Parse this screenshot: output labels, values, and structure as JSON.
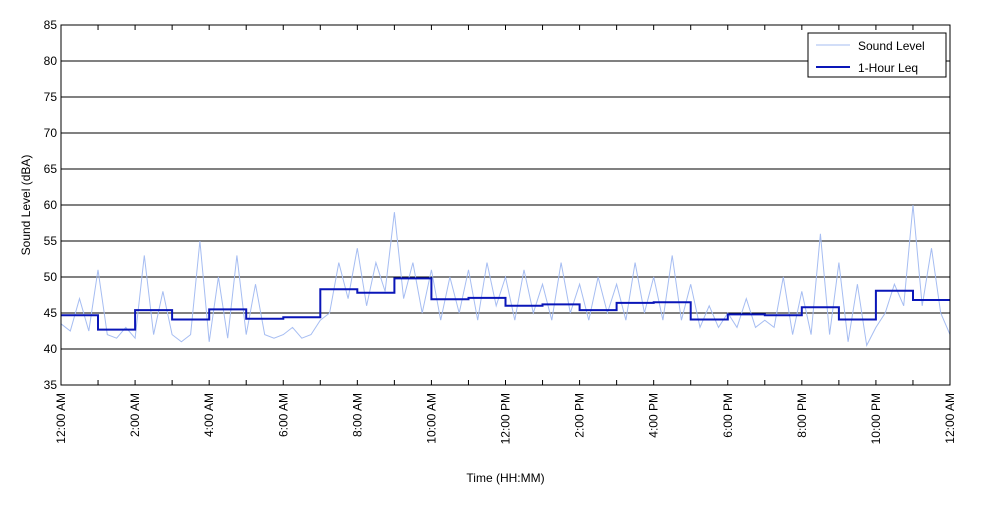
{
  "chart_data": {
    "type": "line",
    "title": "",
    "xlabel": "Time (HH:MM)",
    "ylabel": "Sound Level (dBA)",
    "xlim": [
      0,
      24
    ],
    "ylim": [
      35,
      85
    ],
    "y_ticks": [
      35,
      40,
      45,
      50,
      55,
      60,
      65,
      70,
      75,
      80,
      85
    ],
    "x_ticks": [
      0,
      2,
      4,
      6,
      8,
      10,
      12,
      14,
      16,
      18,
      20,
      22,
      24
    ],
    "x_tick_labels": [
      "12:00 AM",
      "2:00 AM",
      "4:00 AM",
      "6:00 AM",
      "8:00 AM",
      "10:00 AM",
      "12:00 PM",
      "2:00 PM",
      "4:00 PM",
      "6:00 PM",
      "8:00 PM",
      "10:00 PM",
      "12:00 AM"
    ],
    "grid": "horizontal",
    "legend_position": "top-right",
    "series": [
      {
        "name": "Sound Level",
        "color": "#a6bdf2",
        "style": "thin",
        "x": [
          0,
          0.25,
          0.5,
          0.75,
          1.0,
          1.25,
          1.5,
          1.75,
          2.0,
          2.25,
          2.5,
          2.75,
          3.0,
          3.25,
          3.5,
          3.75,
          4.0,
          4.25,
          4.5,
          4.75,
          5.0,
          5.25,
          5.5,
          5.75,
          6.0,
          6.25,
          6.5,
          6.75,
          7.0,
          7.25,
          7.5,
          7.75,
          8.0,
          8.25,
          8.5,
          8.75,
          9.0,
          9.25,
          9.5,
          9.75,
          10.0,
          10.25,
          10.5,
          10.75,
          11.0,
          11.25,
          11.5,
          11.75,
          12.0,
          12.25,
          12.5,
          12.75,
          13.0,
          13.25,
          13.5,
          13.75,
          14.0,
          14.25,
          14.5,
          14.75,
          15.0,
          15.25,
          15.5,
          15.75,
          16.0,
          16.25,
          16.5,
          16.75,
          17.0,
          17.25,
          17.5,
          17.75,
          18.0,
          18.25,
          18.5,
          18.75,
          19.0,
          19.25,
          19.5,
          19.75,
          20.0,
          20.25,
          20.5,
          20.75,
          21.0,
          21.25,
          21.5,
          21.75,
          22.0,
          22.25,
          22.5,
          22.75,
          23.0,
          23.25,
          23.5,
          23.75,
          24.0
        ],
        "values": [
          43.5,
          42.5,
          47,
          42.5,
          51,
          42,
          41.5,
          43,
          41.5,
          53,
          42,
          48,
          42,
          41,
          42,
          55,
          41,
          50,
          41.5,
          53,
          42,
          49,
          42,
          41.5,
          42,
          43,
          41.5,
          42,
          44,
          45,
          52,
          47,
          54,
          46,
          52,
          48,
          59,
          47,
          52,
          45,
          51,
          44,
          50,
          45,
          51,
          44,
          52,
          46,
          50,
          44,
          51,
          45,
          49,
          44,
          52,
          45,
          49,
          44,
          50,
          45,
          49,
          44,
          52,
          45,
          50,
          44,
          53,
          44,
          49,
          43,
          46,
          43,
          45,
          43,
          47,
          43,
          44,
          43,
          50,
          42,
          48,
          42,
          56,
          42,
          52,
          41,
          49,
          40.5,
          43,
          45,
          49,
          46,
          60,
          46,
          54,
          45,
          42
        ]
      },
      {
        "name": "1-Hour Leq",
        "color": "#0a16b8",
        "style": "step",
        "x": [
          0,
          1,
          2,
          3,
          4,
          5,
          6,
          7,
          8,
          9,
          10,
          11,
          12,
          13,
          14,
          15,
          16,
          17,
          18,
          19,
          20,
          21,
          22,
          23
        ],
        "values": [
          44.7,
          42.7,
          45.4,
          44.1,
          45.5,
          44.2,
          44.4,
          48.3,
          47.8,
          49.8,
          46.9,
          47.1,
          46.0,
          46.2,
          45.4,
          46.4,
          46.5,
          44.1,
          44.8,
          44.7,
          45.8,
          44.1,
          48.1,
          46.8
        ]
      }
    ]
  }
}
